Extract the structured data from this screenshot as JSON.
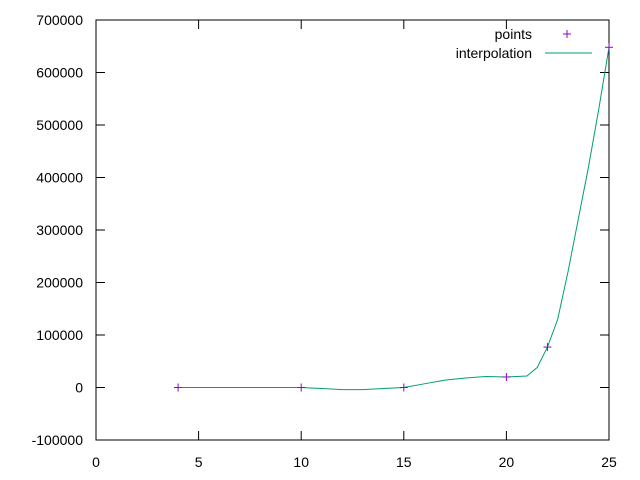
{
  "chart_data": {
    "type": "line",
    "title": "",
    "xlabel": "",
    "ylabel": "",
    "xlim": [
      0,
      25
    ],
    "ylim": [
      -100000,
      700000
    ],
    "x_ticks": [
      {
        "value": 0,
        "label": "0"
      },
      {
        "value": 5,
        "label": "5"
      },
      {
        "value": 10,
        "label": "10"
      },
      {
        "value": 15,
        "label": "15"
      },
      {
        "value": 20,
        "label": "20"
      },
      {
        "value": 25,
        "label": "25"
      }
    ],
    "y_ticks": [
      {
        "value": -100000,
        "label": "-100000"
      },
      {
        "value": 0,
        "label": "0"
      },
      {
        "value": 100000,
        "label": "100000"
      },
      {
        "value": 200000,
        "label": "200000"
      },
      {
        "value": 300000,
        "label": "300000"
      },
      {
        "value": 400000,
        "label": "400000"
      },
      {
        "value": 500000,
        "label": "500000"
      },
      {
        "value": 600000,
        "label": "600000"
      },
      {
        "value": 700000,
        "label": "700000"
      }
    ],
    "grid": false,
    "legend_position": "top-right",
    "series": [
      {
        "name": "points",
        "style": "markers",
        "marker": "plus",
        "color": "#9400d3",
        "x": [
          4,
          10,
          15,
          20,
          22,
          25
        ],
        "y": [
          0,
          0,
          0,
          20000,
          77000,
          648000
        ]
      },
      {
        "name": "interpolation",
        "style": "line",
        "color": "#009e73",
        "x": [
          4,
          6,
          8,
          10,
          11,
          12,
          13,
          14,
          15,
          16,
          17,
          18,
          19,
          20,
          20.5,
          21,
          21.5,
          22,
          22.5,
          23,
          23.5,
          24,
          24.5,
          25
        ],
        "y": [
          0,
          0,
          0,
          0,
          -2000,
          -4000,
          -4000,
          -2000,
          0,
          7000,
          14000,
          18000,
          21000,
          20000,
          21000,
          22000,
          38000,
          77000,
          130000,
          220000,
          320000,
          420000,
          530000,
          648000
        ]
      }
    ]
  }
}
